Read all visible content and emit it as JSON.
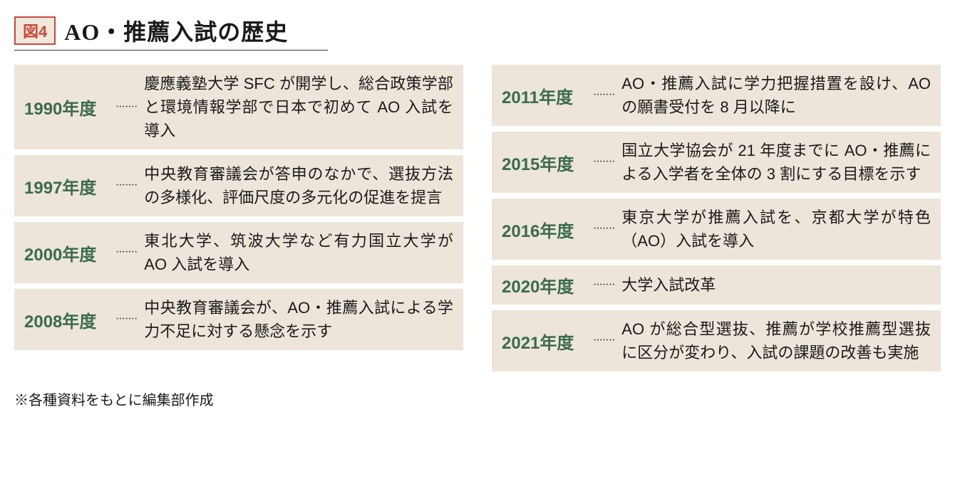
{
  "figure_label": "図4",
  "title": "AO・推薦入試の歴史",
  "dots": "·······",
  "colors": {
    "row_bg": "#ede5d9",
    "year_color": "#3a6b4f",
    "label_border": "#c94a3a",
    "text_color": "#1a1a1a",
    "bg": "#ffffff"
  },
  "left_rows": [
    {
      "year": "1990年度",
      "desc": "慶應義塾大学 SFC が開学し、総合政策学部と環境情報学部で日本で初めて AO 入試を導入"
    },
    {
      "year": "1997年度",
      "desc": "中央教育審議会が答申のなかで、選抜方法の多様化、評価尺度の多元化の促進を提言"
    },
    {
      "year": "2000年度",
      "desc": "東北大学、筑波大学など有力国立大学が AO 入試を導入"
    },
    {
      "year": "2008年度",
      "desc": "中央教育審議会が、AO・推薦入試による学力不足に対する懸念を示す"
    }
  ],
  "right_rows": [
    {
      "year": "2011年度",
      "desc": "AO・推薦入試に学力把握措置を設け、AO の願書受付を 8 月以降に"
    },
    {
      "year": "2015年度",
      "desc": "国立大学協会が 21 年度までに AO・推薦による入学者を全体の 3 割にする目標を示す"
    },
    {
      "year": "2016年度",
      "desc": "東京大学が推薦入試を、京都大学が特色（AO）入試を導入"
    },
    {
      "year": "2020年度",
      "desc": "大学入試改革"
    },
    {
      "year": "2021年度",
      "desc": "AO が総合型選抜、推薦が学校推薦型選抜に区分が変わり、入試の課題の改善も実施"
    }
  ],
  "footnote": "※各種資料をもとに編集部作成"
}
